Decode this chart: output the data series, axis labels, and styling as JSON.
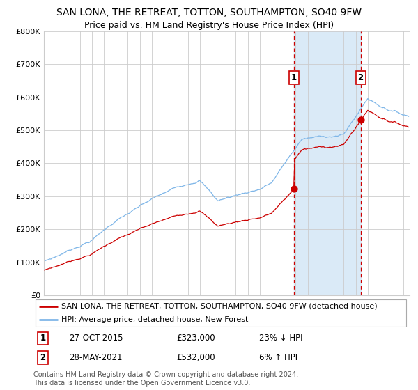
{
  "title": "SAN LONA, THE RETREAT, TOTTON, SOUTHAMPTON, SO40 9FW",
  "subtitle": "Price paid vs. HM Land Registry's House Price Index (HPI)",
  "legend_line1": "SAN LONA, THE RETREAT, TOTTON, SOUTHAMPTON, SO40 9FW (detached house)",
  "legend_line2": "HPI: Average price, detached house, New Forest",
  "annotation1_date": "27-OCT-2015",
  "annotation1_price": "£323,000",
  "annotation1_hpi": "23% ↓ HPI",
  "annotation2_date": "28-MAY-2021",
  "annotation2_price": "£532,000",
  "annotation2_hpi": "6% ↑ HPI",
  "footnote": "Contains HM Land Registry data © Crown copyright and database right 2024.\nThis data is licensed under the Open Government Licence v3.0.",
  "sale1_x": 2015.83,
  "sale1_y": 323000,
  "sale2_x": 2021.41,
  "sale2_y": 532000,
  "shade_start": 2015.83,
  "shade_end": 2021.41,
  "ylim": [
    0,
    800000
  ],
  "xlim_start": 1995.0,
  "xlim_end": 2025.5,
  "hpi_color": "#7eb6e8",
  "property_color": "#cc0000",
  "shade_color": "#daeaf7",
  "grid_color": "#cccccc",
  "background_color": "#ffffff",
  "title_fontsize": 10,
  "subtitle_fontsize": 9,
  "axis_fontsize": 8,
  "legend_fontsize": 8,
  "footnote_fontsize": 7
}
